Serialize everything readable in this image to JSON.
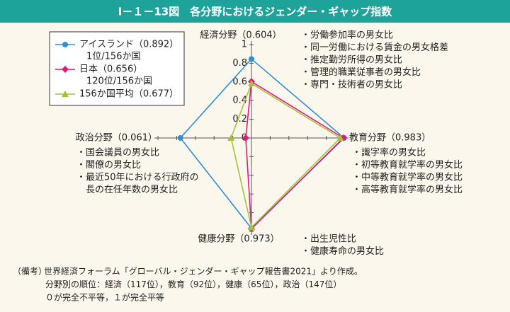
{
  "chart_data": {
    "type": "radar",
    "title": "Ⅰ－１－13図　各分野におけるジェンダー・ギャップ指数",
    "axes": [
      {
        "label": "経済分野（0.604）",
        "items": [
          "・労働参加率の男女比",
          "・同一労働における賃金の男女格差",
          "・推定勤労所得の男女比",
          "・管理的職業従事者の男女比",
          "・専門・技術者の男女比"
        ]
      },
      {
        "label": "教育分野（0.983）",
        "items": [
          "・識字率の男女比",
          "・初等教育就学率の男女比",
          "・中等教育就学率の男女比",
          "・高等教育就学率の男女比"
        ]
      },
      {
        "label": "健康分野（0.973）",
        "items": [
          "・出生児性比",
          "・健康寿命の男女比"
        ]
      },
      {
        "label": "政治分野（0.061）",
        "items": [
          "・国会議員の男女比",
          "・閣僚の男女比",
          "・最近50年における行政府の",
          "　長の在任年数の男女比"
        ]
      }
    ],
    "series": [
      {
        "name": "アイスランド（0.892）",
        "note": "1位/156か国",
        "color": "#2e8fd6",
        "marker": "circle",
        "values": [
          0.846,
          0.991,
          0.968,
          0.76
        ]
      },
      {
        "name": "日本（0.656）",
        "note": "120位/156か国",
        "color": "#e0197d",
        "marker": "diamond",
        "values": [
          0.604,
          0.983,
          0.973,
          0.061
        ]
      },
      {
        "name": "156か国平均（0.677）",
        "color": "#a3c43a",
        "marker": "triangle",
        "values": [
          0.583,
          0.95,
          0.957,
          0.218
        ]
      }
    ],
    "rlim": [
      0,
      1
    ],
    "rticks": [
      0,
      0.2,
      0.4,
      0.6,
      0.8,
      1
    ],
    "footnote": {
      "label": "（備考）",
      "lines": [
        "世界経済フォーラム「グローバル・ジェンダー・ギャップ報告書2021」より作成。",
        "分野別の順位：経済（117位），教育（92位），健康（65位），政治（147位）",
        "０が完全不平等，１が完全平等"
      ]
    }
  }
}
